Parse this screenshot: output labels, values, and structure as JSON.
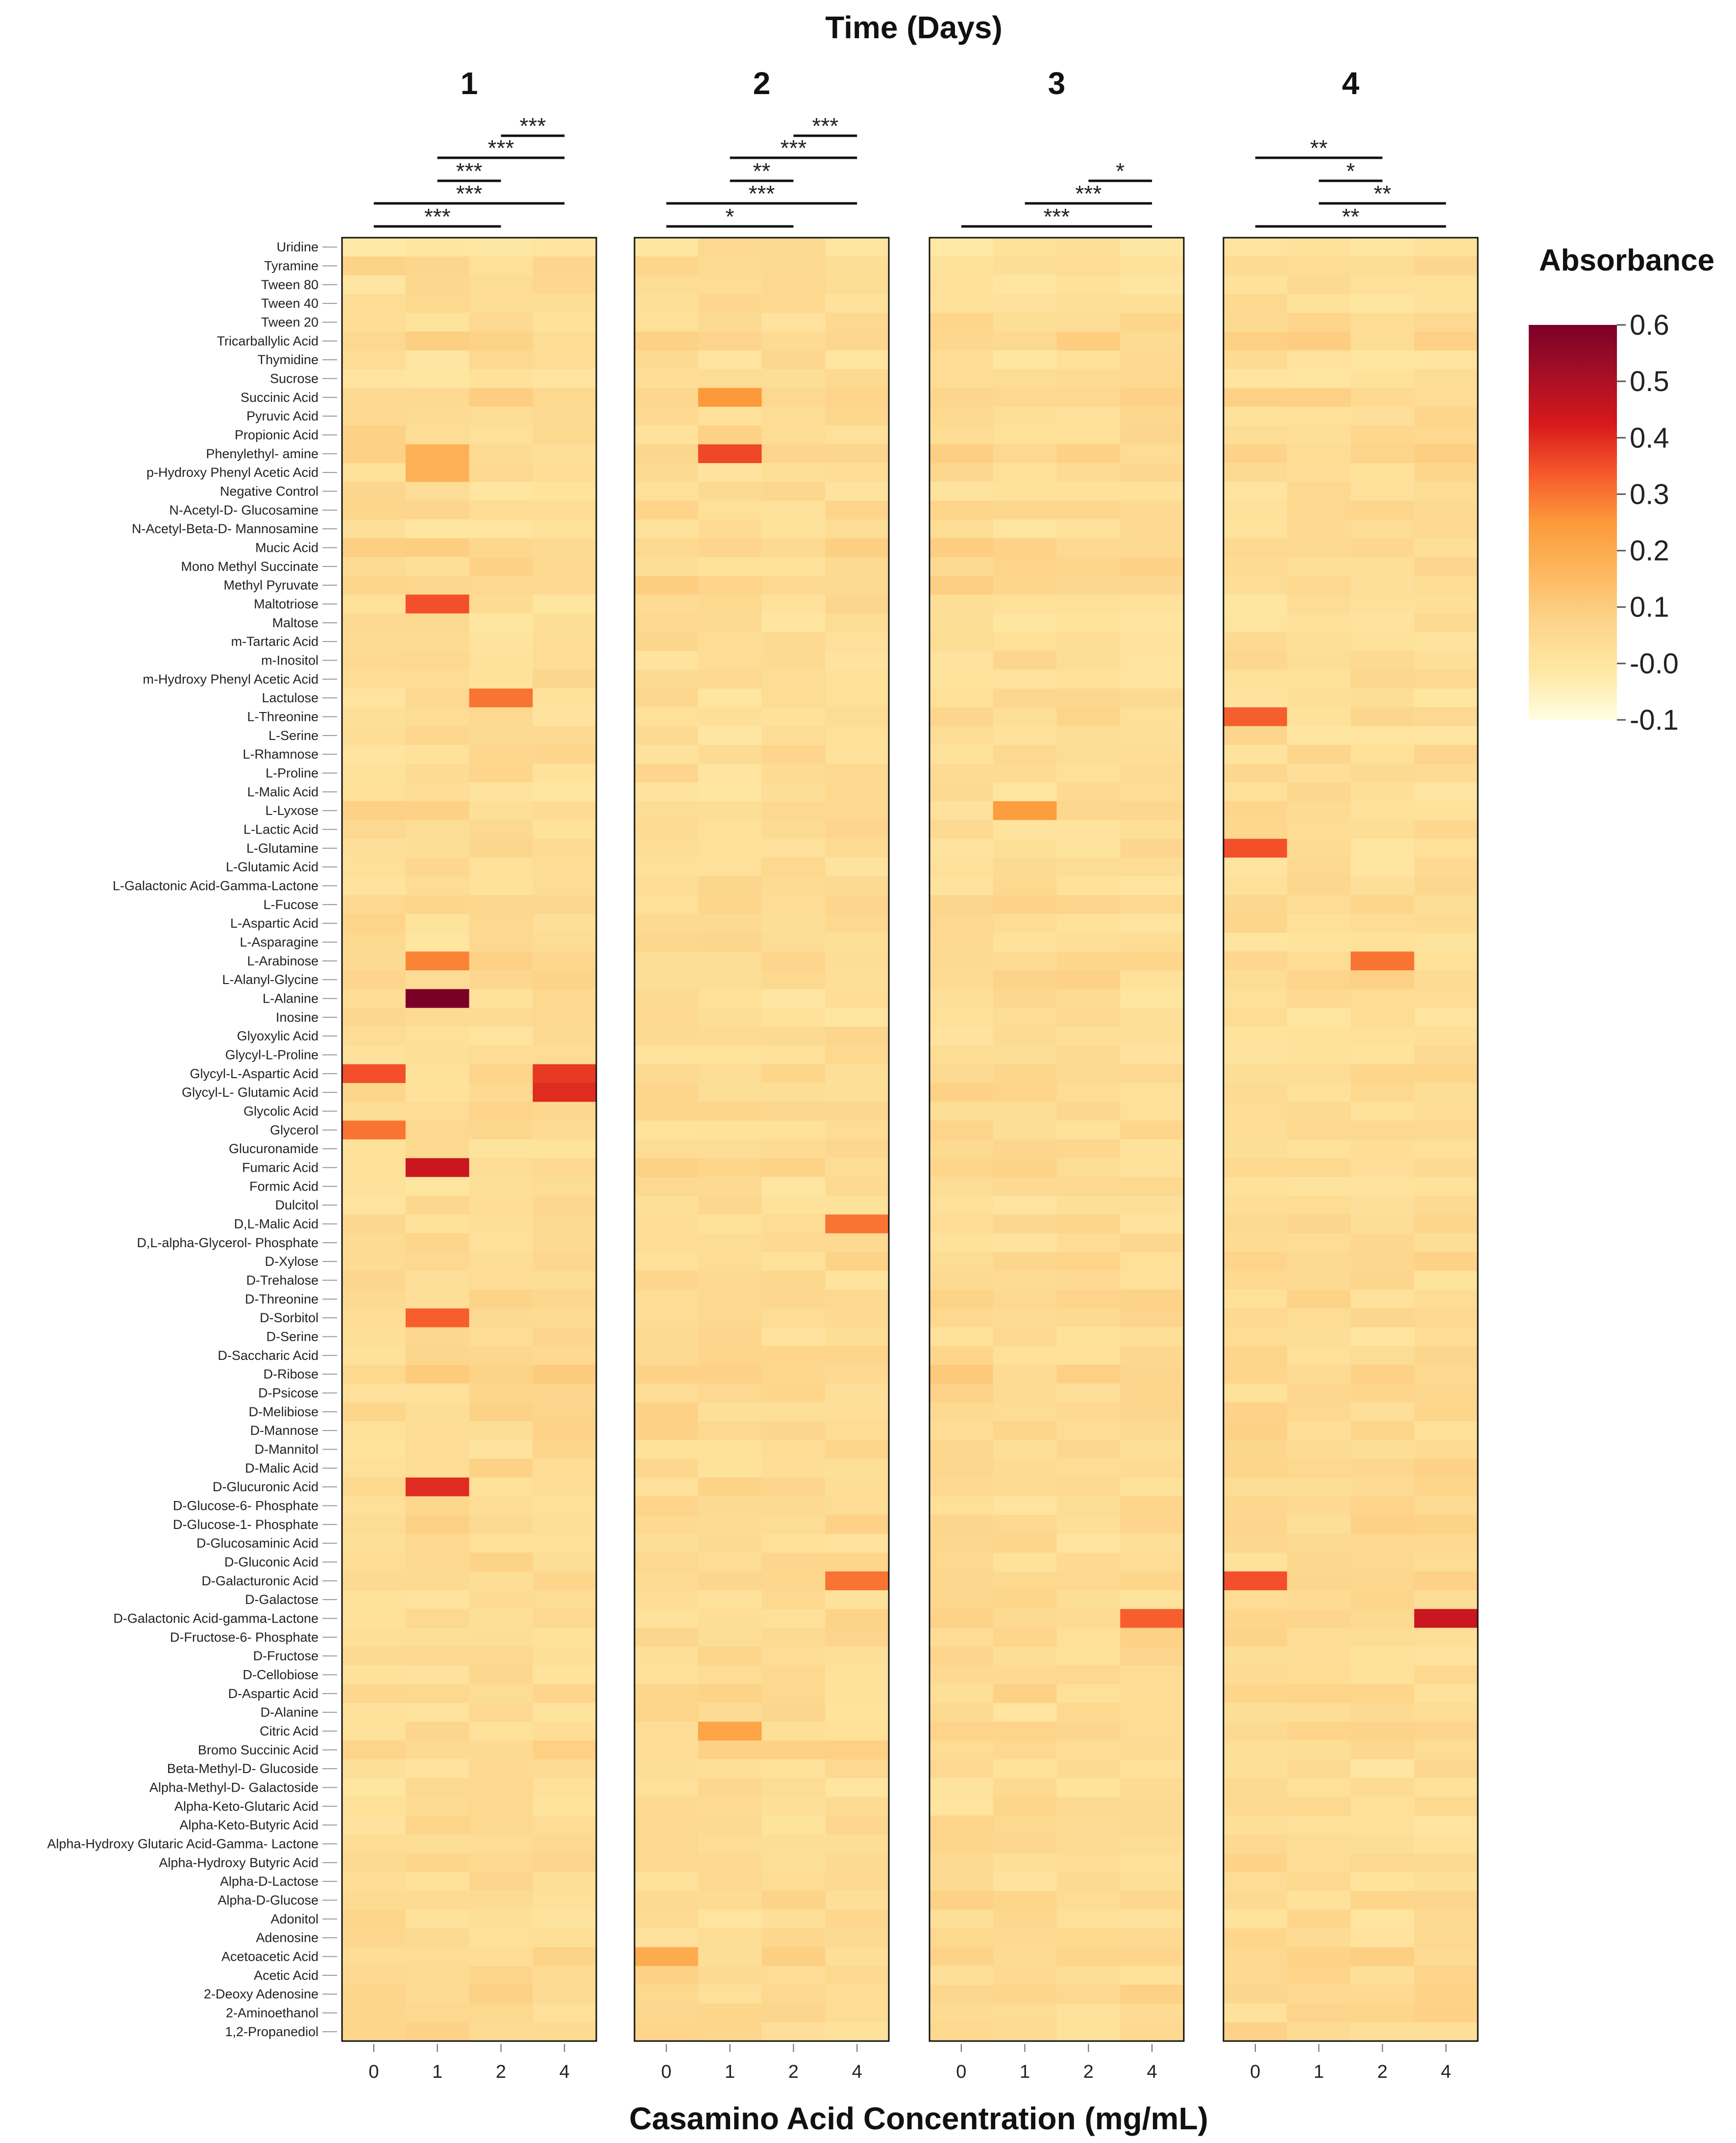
{
  "chart_data": {
    "type": "heatmap",
    "title": "Time (Days)",
    "xlabel": "Casamino Acid Concentration (mg/mL)",
    "ylabel": "",
    "panels": [
      "1",
      "2",
      "3",
      "4"
    ],
    "concentrations": [
      "0",
      "1",
      "2",
      "4"
    ],
    "rows": [
      "Uridine",
      "Tyramine",
      "Tween 80",
      "Tween 40",
      "Tween 20",
      "Tricarballylic Acid",
      "Thymidine",
      "Sucrose",
      "Succinic Acid",
      "Pyruvic Acid",
      "Propionic Acid",
      "Phenylethyl- amine",
      "p-Hydroxy Phenyl Acetic Acid",
      "Negative Control",
      "N-Acetyl-D- Glucosamine",
      "N-Acetyl-Beta-D- Mannosamine",
      "Mucic Acid",
      "Mono Methyl Succinate",
      "Methyl Pyruvate",
      "Maltotriose",
      "Maltose",
      "m-Tartaric Acid",
      "m-Inositol",
      "m-Hydroxy Phenyl Acetic Acid",
      "Lactulose",
      "L-Threonine",
      "L-Serine",
      "L-Rhamnose",
      "L-Proline",
      "L-Malic Acid",
      "L-Lyxose",
      "L-Lactic Acid",
      "L-Glutamine",
      "L-Glutamic Acid",
      "L-Galactonic Acid-Gamma-Lactone",
      "L-Fucose",
      "L-Aspartic Acid",
      "L-Asparagine",
      "L-Arabinose",
      "L-Alanyl-Glycine",
      "L-Alanine",
      "Inosine",
      "Glyoxylic Acid",
      "Glycyl-L-Proline",
      "Glycyl-L-Aspartic Acid",
      "Glycyl-L- Glutamic Acid",
      "Glycolic Acid",
      "Glycerol",
      "Glucuronamide",
      "Fumaric Acid",
      "Formic Acid",
      "Dulcitol",
      "D,L-Malic Acid",
      "D,L-alpha-Glycerol- Phosphate",
      "D-Xylose",
      "D-Trehalose",
      "D-Threonine",
      "D-Sorbitol",
      "D-Serine",
      "D-Saccharic Acid",
      "D-Ribose",
      "D-Psicose",
      "D-Melibiose",
      "D-Mannose",
      "D-Mannitol",
      "D-Malic Acid",
      "D-Glucuronic Acid",
      "D-Glucose-6- Phosphate",
      "D-Glucose-1- Phosphate",
      "D-Glucosaminic Acid",
      "D-Gluconic Acid",
      "D-Galacturonic Acid",
      "D-Galactose",
      "D-Galactonic Acid-gamma-Lactone",
      "D-Fructose-6- Phosphate",
      "D-Fructose",
      "D-Cellobiose",
      "D-Aspartic Acid",
      "D-Alanine",
      "Citric Acid",
      "Bromo Succinic Acid",
      "Beta-Methyl-D- Glucoside",
      "Alpha-Methyl-D- Galactoside",
      "Alpha-Keto-Glutaric Acid",
      "Alpha-Keto-Butyric Acid",
      "Alpha-Hydroxy Glutaric Acid-Gamma- Lactone",
      "Alpha-Hydroxy Butyric Acid",
      "Alpha-D-Lactose",
      "Alpha-D-Glucose",
      "Adonitol",
      "Adenosine",
      "Acetoacetic Acid",
      "Acetic Acid",
      "2-Deoxy Adenosine",
      "2-Aminoethanol",
      "1,2-Propanediol"
    ],
    "base_values": [
      0.02,
      0.05,
      0.03,
      0.03,
      0.04,
      0.06,
      0.03,
      0.03,
      0.06,
      0.05,
      0.05,
      0.06,
      0.04,
      0.03,
      0.05,
      0.03,
      0.06,
      0.05,
      0.06,
      0.03,
      0.03,
      0.04,
      0.04,
      0.04,
      0.03,
      0.04,
      0.03,
      0.04,
      0.04,
      0.03,
      0.05,
      0.04,
      0.04,
      0.03,
      0.03,
      0.05,
      0.04,
      0.03,
      0.05,
      0.05,
      0.03,
      0.03,
      0.04,
      0.04,
      0.05,
      0.05,
      0.05,
      0.04,
      0.04,
      0.05,
      0.03,
      0.03,
      0.04,
      0.04,
      0.05,
      0.04,
      0.05,
      0.05,
      0.04,
      0.04,
      0.08,
      0.05,
      0.05,
      0.05,
      0.04,
      0.05,
      0.05,
      0.04,
      0.05,
      0.04,
      0.05,
      0.05,
      0.04,
      0.05,
      0.05,
      0.04,
      0.04,
      0.05,
      0.04,
      0.05,
      0.06,
      0.03,
      0.03,
      0.04,
      0.04,
      0.05,
      0.05,
      0.04,
      0.05,
      0.04,
      0.04,
      0.06,
      0.05,
      0.05,
      0.05,
      0.05
    ],
    "highlights": [
      {
        "row": "L-Alanine",
        "day": "1",
        "conc": "1",
        "value": 0.6
      },
      {
        "row": "Fumaric Acid",
        "day": "1",
        "conc": "1",
        "value": 0.45
      },
      {
        "row": "D-Glucuronic Acid",
        "day": "1",
        "conc": "1",
        "value": 0.4
      },
      {
        "row": "Maltotriose",
        "day": "1",
        "conc": "1",
        "value": 0.35
      },
      {
        "row": "D-Sorbitol",
        "day": "1",
        "conc": "1",
        "value": 0.33
      },
      {
        "row": "L-Arabinose",
        "day": "1",
        "conc": "1",
        "value": 0.28
      },
      {
        "row": "Lactulose",
        "day": "1",
        "conc": "2",
        "value": 0.3
      },
      {
        "row": "Glycyl-L-Aspartic Acid",
        "day": "1",
        "conc": "0",
        "value": 0.35
      },
      {
        "row": "Glycyl-L-Aspartic Acid",
        "day": "1",
        "conc": "4",
        "value": 0.38
      },
      {
        "row": "Glycyl-L- Glutamic Acid",
        "day": "1",
        "conc": "4",
        "value": 0.4
      },
      {
        "row": "Glycerol",
        "day": "1",
        "conc": "0",
        "value": 0.3
      },
      {
        "row": "Phenylethyl- amine",
        "day": "1",
        "conc": "1",
        "value": 0.18
      },
      {
        "row": "p-Hydroxy Phenyl Acetic Acid",
        "day": "1",
        "conc": "1",
        "value": 0.18
      },
      {
        "row": "Phenylethyl- amine",
        "day": "2",
        "conc": "1",
        "value": 0.36
      },
      {
        "row": "Succinic Acid",
        "day": "2",
        "conc": "1",
        "value": 0.25
      },
      {
        "row": "Citric Acid",
        "day": "2",
        "conc": "1",
        "value": 0.22
      },
      {
        "row": "D,L-Malic Acid",
        "day": "2",
        "conc": "4",
        "value": 0.3
      },
      {
        "row": "D-Galacturonic Acid",
        "day": "2",
        "conc": "4",
        "value": 0.3
      },
      {
        "row": "Acetoacetic Acid",
        "day": "2",
        "conc": "0",
        "value": 0.2
      },
      {
        "row": "L-Lyxose",
        "day": "3",
        "conc": "1",
        "value": 0.24
      },
      {
        "row": "D-Galactonic Acid-gamma-Lactone",
        "day": "3",
        "conc": "4",
        "value": 0.33
      },
      {
        "row": "L-Threonine",
        "day": "4",
        "conc": "0",
        "value": 0.33
      },
      {
        "row": "L-Glutamine",
        "day": "4",
        "conc": "0",
        "value": 0.35
      },
      {
        "row": "D-Galacturonic Acid",
        "day": "4",
        "conc": "0",
        "value": 0.35
      },
      {
        "row": "L-Arabinose",
        "day": "4",
        "conc": "2",
        "value": 0.3
      },
      {
        "row": "D-Galactonic Acid-gamma-Lactone",
        "day": "4",
        "conc": "4",
        "value": 0.45
      }
    ],
    "significance": [
      {
        "day": "1",
        "from": "0",
        "to": "2",
        "label": "***",
        "level": 1
      },
      {
        "day": "1",
        "from": "0",
        "to": "4",
        "label": "***",
        "level": 2
      },
      {
        "day": "1",
        "from": "1",
        "to": "2",
        "label": "***",
        "level": 3
      },
      {
        "day": "1",
        "from": "1",
        "to": "4",
        "label": "***",
        "level": 4
      },
      {
        "day": "1",
        "from": "2",
        "to": "4",
        "label": "***",
        "level": 5
      },
      {
        "day": "2",
        "from": "0",
        "to": "2",
        "label": "*",
        "level": 1
      },
      {
        "day": "2",
        "from": "0",
        "to": "4",
        "label": "***",
        "level": 2
      },
      {
        "day": "2",
        "from": "1",
        "to": "2",
        "label": "**",
        "level": 3
      },
      {
        "day": "2",
        "from": "1",
        "to": "4",
        "label": "***",
        "level": 4
      },
      {
        "day": "2",
        "from": "2",
        "to": "4",
        "label": "***",
        "level": 5
      },
      {
        "day": "3",
        "from": "0",
        "to": "4",
        "label": "***",
        "level": 1
      },
      {
        "day": "3",
        "from": "1",
        "to": "4",
        "label": "***",
        "level": 2
      },
      {
        "day": "3",
        "from": "2",
        "to": "4",
        "label": "*",
        "level": 3
      },
      {
        "day": "4",
        "from": "0",
        "to": "4",
        "label": "**",
        "level": 1
      },
      {
        "day": "4",
        "from": "1",
        "to": "4",
        "label": "**",
        "level": 2
      },
      {
        "day": "4",
        "from": "1",
        "to": "2",
        "label": "*",
        "level": 3
      },
      {
        "day": "4",
        "from": "0",
        "to": "2",
        "label": "**",
        "level": 4
      }
    ],
    "legend": {
      "title": "Absorbance",
      "ticks": [
        "0.6",
        "0.5",
        "0.4",
        "0.3",
        "0.2",
        "0.1",
        "-0.0",
        "-0.1"
      ],
      "range": [
        -0.1,
        0.6
      ]
    },
    "colors": [
      "#fffde0",
      "#fee8a4",
      "#fdd48a",
      "#fdb75e",
      "#fc9a3a",
      "#f6582c",
      "#d7191c",
      "#a50f26",
      "#7b0028"
    ]
  }
}
